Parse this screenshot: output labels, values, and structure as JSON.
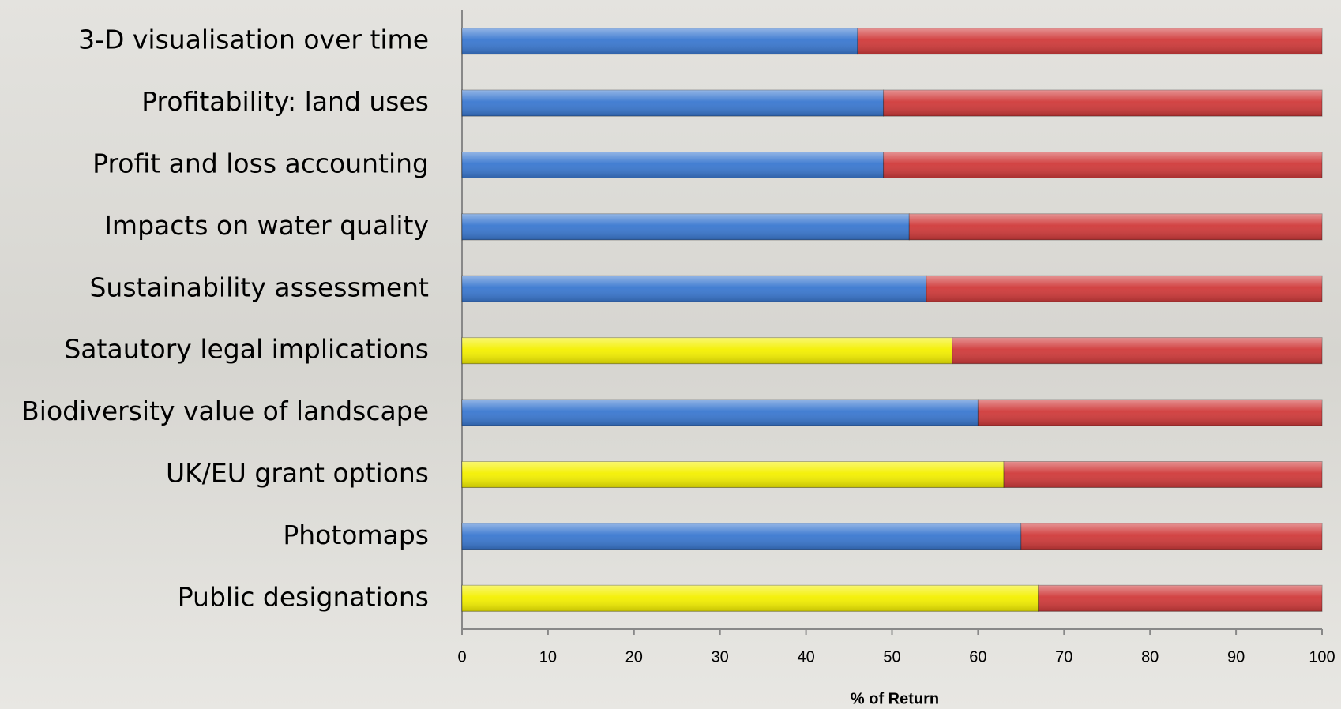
{
  "chart_data": {
    "type": "stacked-barh",
    "categories": [
      "3-D visualisation over time",
      "Profitability: land uses",
      "Profit and loss accounting",
      "Impacts on water quality",
      "Sustainability assessment",
      "Satautory legal implications",
      "Biodiversity value of landscape",
      "UK/EU grant options",
      "Photomaps",
      "Public designations"
    ],
    "series": [
      {
        "colors": [
          "#3a78d0",
          "#3a78d0",
          "#3a78d0",
          "#3a78d0",
          "#3a78d0",
          "#f4f000",
          "#3a78d0",
          "#f4f000",
          "#3a78d0",
          "#f4f000"
        ],
        "values": [
          46,
          49,
          49,
          52,
          54,
          57,
          60,
          63,
          65,
          67
        ]
      },
      {
        "color": "#d03a3a",
        "values": [
          54,
          51,
          51,
          48,
          46,
          43,
          40,
          37,
          35,
          33
        ]
      }
    ],
    "x_label": "% of Return",
    "xlim": [
      0,
      100
    ],
    "xticks": [
      0,
      10,
      20,
      30,
      40,
      50,
      60,
      70,
      80,
      90,
      100
    ]
  }
}
